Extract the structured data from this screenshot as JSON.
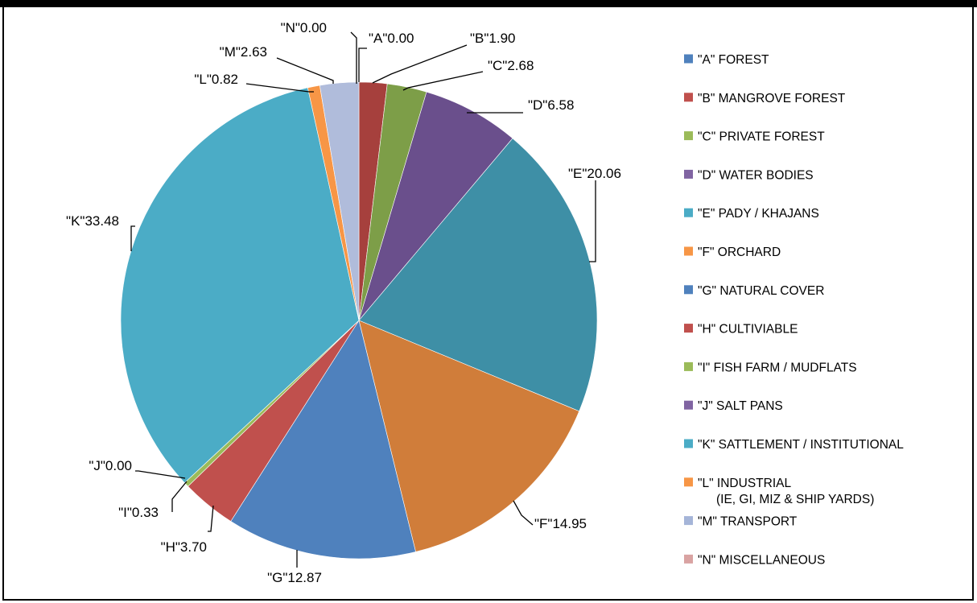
{
  "chart_data": {
    "type": "pie",
    "categories": [
      "\"A\" FOREST",
      "\"B\" MANGROVE FOREST",
      "\"C\" PRIVATE FOREST",
      "\"D\" WATER BODIES",
      "\"E\" PADY / KHAJANS",
      "\"F\" ORCHARD",
      "\"G\" NATURAL COVER",
      "\"H\" CULTIVIABLE",
      "\"I\" FISH FARM / MUDFLATS",
      "\"J\" SALT PANS",
      "\"K\" SATTLEMENT / INSTITUTIONAL",
      "\"L\" INDUSTRIAL",
      "\"M\" TRANSPORT",
      "\"N\" MISCELLANEOUS"
    ],
    "legend_sublabel_L": "(IE, GI, MIZ & SHIP YARDS)",
    "data_labels": [
      "\"A\"0.00",
      "\"B\"1.90",
      "\"C\"2.68",
      "\"D\"6.58",
      "\"E\"20.06",
      "\"F\"14.95",
      "\"G\"12.87",
      "\"H\"3.70",
      "\"I\"0.33",
      "\"J\"0.00",
      "\"K\"33.48",
      "\"L\"0.82",
      "\"M\"2.63",
      "\"N\"0.00"
    ],
    "values": [
      0.0,
      1.9,
      2.68,
      6.58,
      20.06,
      14.95,
      12.87,
      3.7,
      0.33,
      0.0,
      33.48,
      0.82,
      2.63,
      0.0
    ],
    "colors": [
      "#4F81BD",
      "#C0504D",
      "#9BBB59",
      "#8064A2",
      "#4BACC6",
      "#F79646",
      "#4F81BD",
      "#C0504D",
      "#9BBB59",
      "#8064A2",
      "#4BACC6",
      "#F79646",
      "#A5B5D8",
      "#D9A3A2"
    ],
    "slice_colors": [
      "#3F6EA6",
      "#A6403D",
      "#7D9E48",
      "#6A4F8C",
      "#3E8FA6",
      "#D07D3A",
      "#4F81BD",
      "#C0504D",
      "#9BBB59",
      "#8064A2",
      "#4BACC6",
      "#F79646",
      "#B0BCDB",
      "#D9A3A2"
    ],
    "legend_placement": "right"
  }
}
